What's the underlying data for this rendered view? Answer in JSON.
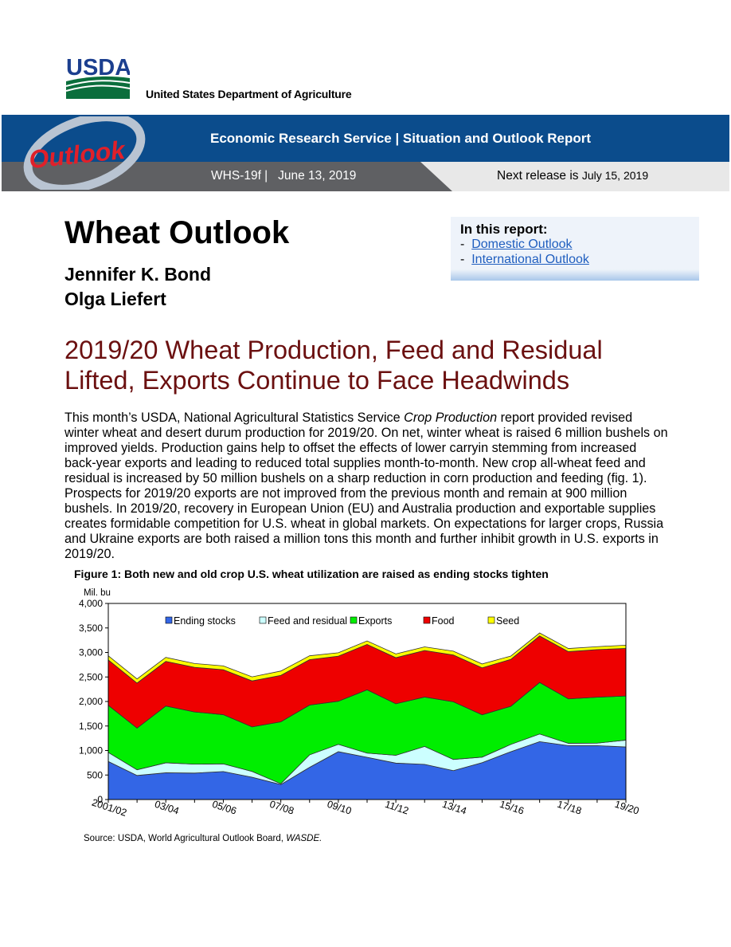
{
  "header": {
    "logo_text": "USDA",
    "department": "United States Department of Agriculture",
    "outlook_logo": "Outlook",
    "service_title": "Economic Research Service | Situation and Outlook Report",
    "issue_id": "WHS-19f |",
    "issue_date": "June 13, 2019",
    "next_release_label": "Next release is",
    "next_release_date": "July 15, 2019"
  },
  "report": {
    "title": "Wheat Outlook",
    "authors": [
      "Jennifer K. Bond",
      "Olga Liefert"
    ],
    "in_this_report": "In this report:",
    "links": [
      "Domestic Outlook",
      "International Outlook"
    ]
  },
  "article": {
    "headline_line1": "2019/20 Wheat Production, Feed and Residual",
    "headline_line2": "Lifted, Exports Continue to Face Headwinds",
    "body_part1": "This month’s USDA, National Agricultural Statistics Service ",
    "body_italic": "Crop Production",
    "body_part2": " report provided revised winter wheat and desert durum production for 2019/20. On net, winter wheat is raised 6 million bushels on improved yields. Production gains help to offset the effects of lower carryin stemming from increased back-year exports and leading to reduced total supplies month-to-month. New crop all-wheat feed and residual is increased by 50 million bushels on a sharp reduction in corn production and feeding (fig. 1). Prospects for 2019/20 exports are not improved from the previous month and remain at 900 million bushels. In 2019/20, recovery in European Union (EU) and Australia production and exportable supplies creates formidable competition for U.S. wheat in global markets. On expectations for larger crops, Russia and Ukraine exports are both raised a million tons this month and further inhibit growth in U.S. exports in 2019/20."
  },
  "figure": {
    "title": "Figure 1:  Both new and old crop U.S. wheat utilization are raised as ending stocks tighten",
    "source_prefix": "Source:  USDA, World Agricultural Outlook Board, ",
    "source_italic": "WASDE."
  },
  "chart_data": {
    "type": "area",
    "stacked": true,
    "ylabel": "Mil. bu",
    "ylim": [
      0,
      4000
    ],
    "yticks": [
      "0",
      "500",
      "1,000",
      "1,500",
      "2,000",
      "2,500",
      "3,000",
      "3,500",
      "4,000"
    ],
    "ytick_values": [
      0,
      500,
      1000,
      1500,
      2000,
      2500,
      3000,
      3500,
      4000
    ],
    "x": [
      "2001/02",
      "2002/03",
      "2003/04",
      "2004/05",
      "2005/06",
      "2006/07",
      "2007/08",
      "2008/09",
      "2009/10",
      "2010/11",
      "2011/12",
      "2012/13",
      "2013/14",
      "2014/15",
      "2015/16",
      "2016/17",
      "2017/18",
      "2018/19",
      "2019/20"
    ],
    "xtick_labels": [
      "2001/02",
      "03/04",
      "05/06",
      "07/08",
      "09/10",
      "11/12",
      "13/14",
      "15/16",
      "17/18",
      "19/20"
    ],
    "xtick_indices": [
      0,
      2,
      4,
      6,
      8,
      10,
      12,
      14,
      16,
      18
    ],
    "legend_position": "top",
    "series": [
      {
        "name": "Ending stocks",
        "color": "#3366e6",
        "values": [
          777,
          491,
          546,
          540,
          571,
          456,
          306,
          657,
          976,
          862,
          743,
          718,
          590,
          752,
          976,
          1181,
          1100,
          1100,
          1072
        ]
      },
      {
        "name": "Feed and residual",
        "color": "#ccffff",
        "values": [
          183,
          116,
          203,
          181,
          157,
          117,
          16,
          255,
          150,
          85,
          159,
          365,
          228,
          113,
          149,
          156,
          47,
          50,
          140
        ]
      },
      {
        "name": "Exports",
        "color": "#00ee00",
        "values": [
          962,
          850,
          1158,
          1066,
          1003,
          909,
          1263,
          1015,
          879,
          1291,
          1051,
          1007,
          1176,
          864,
          778,
          1051,
          906,
          938,
          900
        ]
      },
      {
        "name": "Food",
        "color": "#ee0000",
        "values": [
          926,
          919,
          912,
          910,
          917,
          938,
          948,
          927,
          919,
          926,
          941,
          951,
          955,
          958,
          957,
          949,
          964,
          971,
          970
        ]
      },
      {
        "name": "Seed",
        "color": "#ffff00",
        "values": [
          83,
          84,
          80,
          78,
          78,
          82,
          88,
          78,
          70,
          71,
          76,
          73,
          77,
          79,
          67,
          61,
          63,
          59,
          66
        ]
      }
    ]
  }
}
